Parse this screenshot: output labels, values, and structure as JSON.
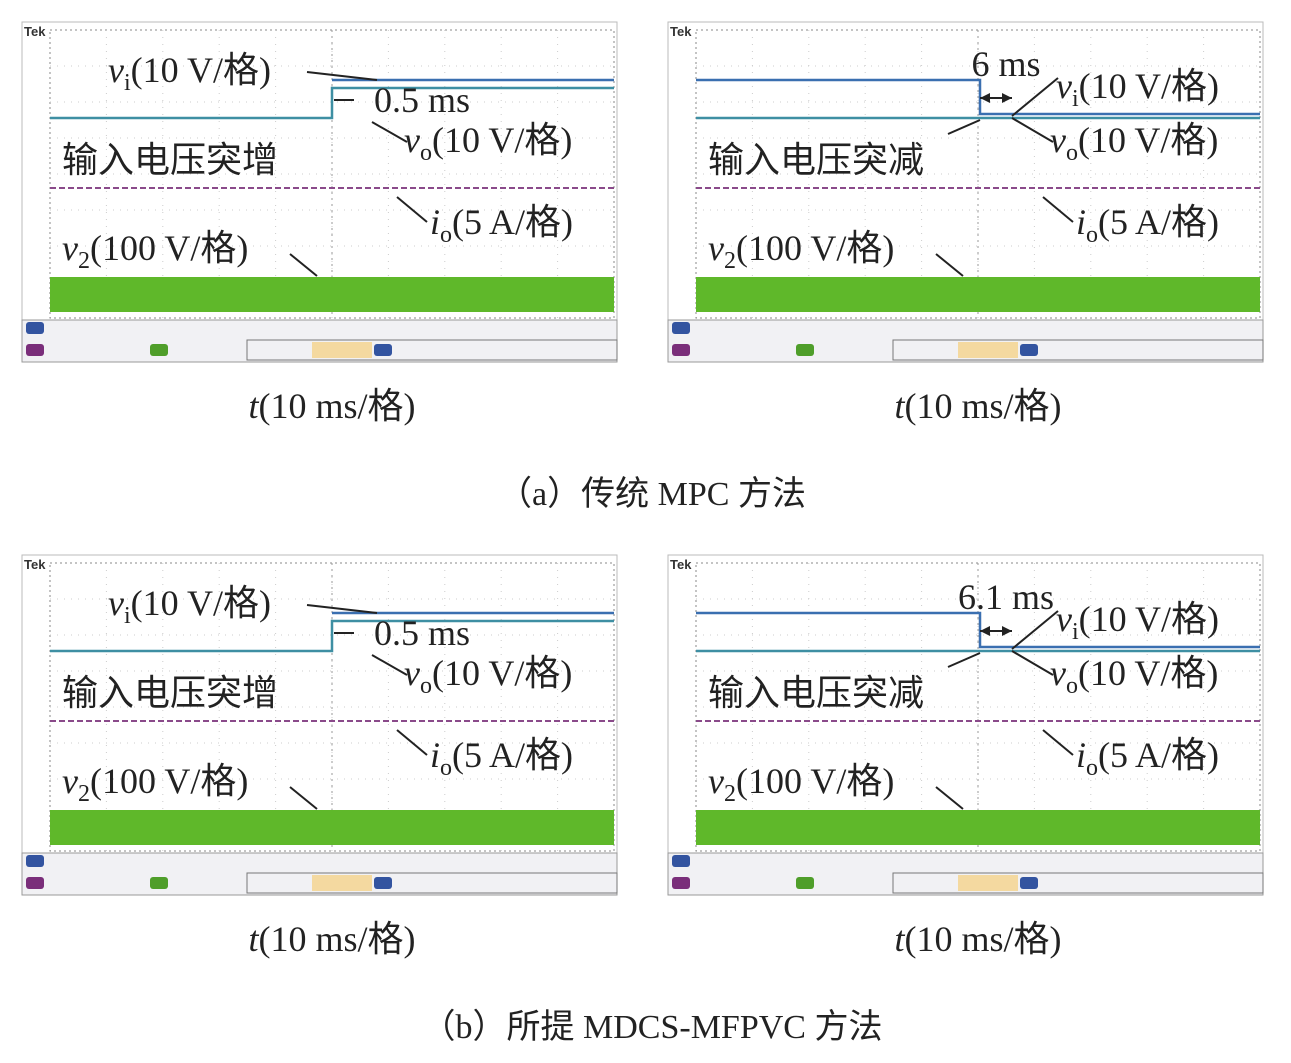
{
  "panels": [
    {
      "caption": "（a）传统 MPC 方法",
      "scopes": [
        {
          "brand": "Tek",
          "vi": {
            "var": "v",
            "sub": "i",
            "unit": "(10 V/格)"
          },
          "vo": {
            "var": "v",
            "sub": "o",
            "unit": "(10 V/格)"
          },
          "io": {
            "var": "i",
            "sub": "o",
            "unit": "(5 A/格)"
          },
          "v2": {
            "var": "v",
            "sub": "2",
            "unit": "(100 V/格)"
          },
          "event": "输入电压突增",
          "delay": "0.5 ms",
          "xlabel": {
            "var": "t",
            "unit": "(10 ms/格)"
          }
        },
        {
          "brand": "Tek",
          "vi": {
            "var": "v",
            "sub": "i",
            "unit": "(10 V/格)"
          },
          "vo": {
            "var": "v",
            "sub": "o",
            "unit": "(10 V/格)"
          },
          "io": {
            "var": "i",
            "sub": "o",
            "unit": "(5 A/格)"
          },
          "v2": {
            "var": "v",
            "sub": "2",
            "unit": "(100 V/格)"
          },
          "event": "输入电压突减",
          "delay": "6 ms",
          "xlabel": {
            "var": "t",
            "unit": "(10 ms/格)"
          }
        }
      ]
    },
    {
      "caption": "（b）所提 MDCS-MFPVC 方法",
      "scopes": [
        {
          "brand": "Tek",
          "vi": {
            "var": "v",
            "sub": "i",
            "unit": "(10 V/格)"
          },
          "vo": {
            "var": "v",
            "sub": "o",
            "unit": "(10 V/格)"
          },
          "io": {
            "var": "i",
            "sub": "o",
            "unit": "(5 A/格)"
          },
          "v2": {
            "var": "v",
            "sub": "2",
            "unit": "(100 V/格)"
          },
          "event": "输入电压突增",
          "delay": "0.5 ms",
          "xlabel": {
            "var": "t",
            "unit": "(10 ms/格)"
          }
        },
        {
          "brand": "Tek",
          "vi": {
            "var": "v",
            "sub": "i",
            "unit": "(10 V/格)"
          },
          "vo": {
            "var": "v",
            "sub": "o",
            "unit": "(10 V/格)"
          },
          "io": {
            "var": "i",
            "sub": "o",
            "unit": "(5 A/格)"
          },
          "v2": {
            "var": "v",
            "sub": "2",
            "unit": "(100 V/格)"
          },
          "event": "输入电压突减",
          "delay": "6.1 ms",
          "xlabel": {
            "var": "t",
            "unit": "(10 ms/格)"
          }
        }
      ]
    }
  ]
}
